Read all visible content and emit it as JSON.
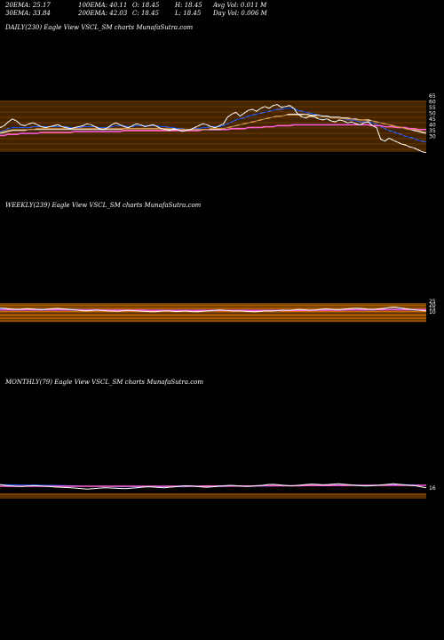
{
  "stats": {
    "ema20": "20EMA: 25.17",
    "ema100": "100EMA: 40.11",
    "open": "O: 18.45",
    "high": "H: 18.45",
    "avgvol": "Avg Vol: 0.011 M",
    "ema30": "30EMA: 33.84",
    "ema200": "200EMA: 42.03",
    "close": "C: 18.45",
    "low": "L: 18.45",
    "dayvol": "Day Vol: 0.006 M"
  },
  "chart_data": [
    {
      "type": "line",
      "title": "DAILY(230) Eagle View VSCL_SM charts MunafaSutra.com",
      "right_axis_labels": [
        "65",
        "60",
        "55",
        "50",
        "45",
        "40",
        "35",
        "30"
      ],
      "ylim": [
        15,
        75
      ],
      "price": [
        44,
        46,
        50,
        53,
        51,
        47,
        46,
        48,
        49,
        47,
        45,
        44,
        45,
        46,
        47,
        45,
        44,
        43,
        44,
        45,
        46,
        48,
        47,
        45,
        43,
        42,
        44,
        47,
        49,
        47,
        45,
        44,
        46,
        48,
        47,
        45,
        46,
        47,
        45,
        43,
        42,
        41,
        43,
        42,
        40,
        41,
        42,
        44,
        46,
        48,
        47,
        45,
        44,
        46,
        48,
        55,
        58,
        60,
        56,
        59,
        62,
        63,
        61,
        64,
        66,
        64,
        67,
        68,
        65,
        66,
        67,
        64,
        58,
        55,
        54,
        56,
        55,
        53,
        52,
        53,
        51,
        50,
        52,
        51,
        49,
        50,
        48,
        47,
        49,
        50,
        46,
        44,
        32,
        30,
        33,
        31,
        29,
        27,
        26,
        24,
        23,
        21,
        19,
        18
      ],
      "series": [
        {
          "name": "",
          "color": "#1f5cff",
          "values": [
            40,
            41,
            43,
            44,
            44,
            44,
            44,
            44,
            45,
            45,
            45,
            45,
            45,
            45,
            45,
            45,
            45,
            44,
            44,
            44,
            45,
            45,
            45,
            45,
            44,
            44,
            44,
            45,
            46,
            46,
            46,
            45,
            45,
            46,
            46,
            46,
            46,
            46,
            46,
            45,
            45,
            44,
            44,
            43,
            43,
            42,
            42,
            43,
            43,
            44,
            44,
            45,
            45,
            45,
            46,
            48,
            50,
            52,
            53,
            54,
            56,
            57,
            58,
            59,
            60,
            61,
            62,
            63,
            63,
            64,
            64,
            64,
            62,
            61,
            60,
            59,
            58,
            57,
            56,
            56,
            55,
            54,
            54,
            53,
            52,
            52,
            51,
            50,
            50,
            50,
            49,
            48,
            45,
            43,
            41,
            40,
            38,
            37,
            35,
            34,
            33,
            31,
            30,
            29
          ]
        },
        {
          "name": "",
          "color": "#ff5fd0",
          "values": [
            36,
            36,
            37,
            37,
            37,
            38,
            38,
            38,
            38,
            38,
            39,
            39,
            39,
            39,
            39,
            39,
            39,
            39,
            40,
            40,
            40,
            40,
            40,
            40,
            40,
            40,
            40,
            40,
            40,
            40,
            41,
            41,
            41,
            41,
            41,
            41,
            41,
            41,
            41,
            41,
            41,
            41,
            41,
            41,
            41,
            41,
            41,
            41,
            41,
            42,
            42,
            42,
            42,
            42,
            42,
            42,
            43,
            43,
            43,
            43,
            44,
            44,
            44,
            44,
            45,
            45,
            45,
            46,
            46,
            46,
            46,
            47,
            47,
            47,
            47,
            47,
            47,
            47,
            47,
            47,
            47,
            47,
            47,
            47,
            47,
            47,
            47,
            47,
            47,
            47,
            46,
            46,
            46,
            45,
            45,
            45,
            44,
            44,
            44,
            43,
            43,
            42,
            42,
            42
          ]
        },
        {
          "name": "",
          "color": "#ffffff",
          "values": [
            38,
            39,
            40,
            41,
            41,
            41,
            41,
            42,
            42,
            42,
            42,
            42,
            42,
            42,
            42,
            42,
            42,
            42,
            42,
            42,
            42,
            42,
            42,
            42,
            42,
            42,
            42,
            42,
            42,
            42,
            43,
            43,
            43,
            43,
            43,
            43,
            43,
            43,
            43,
            43,
            43,
            42,
            42,
            42,
            42,
            42,
            42,
            42,
            42,
            42,
            42,
            42,
            42,
            42,
            43,
            44,
            45,
            46,
            47,
            48,
            49,
            50,
            51,
            52,
            53,
            54,
            55,
            56,
            56,
            57,
            58,
            58,
            58,
            58,
            58,
            57,
            57,
            57,
            56,
            56,
            55,
            55,
            55,
            54,
            54,
            53,
            53,
            52,
            52,
            52,
            51,
            50,
            49,
            48,
            47,
            46,
            45,
            44,
            43,
            42,
            41,
            40,
            39,
            38
          ]
        },
        {
          "name": "",
          "color": "#c98a3a",
          "values": [
            39,
            40,
            41,
            42,
            42,
            42,
            42,
            42,
            42,
            43,
            43,
            43,
            43,
            43,
            43,
            43,
            43,
            43,
            43,
            43,
            43,
            43,
            43,
            43,
            43,
            43,
            43,
            43,
            43,
            43,
            43,
            43,
            43,
            43,
            43,
            43,
            43,
            43,
            43,
            43,
            43,
            43,
            43,
            42,
            42,
            42,
            42,
            42,
            42,
            42,
            42,
            43,
            43,
            43,
            43,
            44,
            45,
            46,
            47,
            48,
            49,
            50,
            51,
            52,
            53,
            54,
            55,
            56,
            56,
            57,
            57,
            57,
            57,
            57,
            56,
            56,
            56,
            55,
            55,
            55,
            54,
            54,
            54,
            53,
            53,
            53,
            52,
            52,
            52,
            51,
            51,
            50,
            49,
            48,
            47,
            46,
            45,
            44,
            43,
            42,
            42,
            41,
            40,
            39
          ]
        }
      ]
    },
    {
      "type": "line",
      "title": "WEEKLY(239) Eagle View VSCL_SM charts MunafaSutra.com",
      "right_axis_labels": [
        "25",
        "20",
        "15",
        "10"
      ],
      "ylim": [
        0,
        100
      ],
      "price": [
        50,
        48,
        46,
        44,
        45,
        47,
        46,
        44,
        43,
        45,
        47,
        48,
        46,
        44,
        42,
        40,
        38,
        39,
        41,
        40,
        38,
        37,
        36,
        38,
        40,
        39,
        37,
        36,
        35,
        34,
        36,
        38,
        37,
        35,
        36,
        37,
        35,
        34,
        36,
        38,
        40,
        42,
        41,
        39,
        37,
        38,
        36,
        35,
        34,
        36,
        38,
        37,
        39,
        41,
        40,
        42,
        44,
        43,
        41,
        42,
        44,
        46,
        45,
        43,
        44,
        46,
        48,
        49,
        47,
        45,
        44,
        46,
        48,
        52,
        54,
        51,
        47,
        44,
        42,
        40,
        38
      ],
      "series": [
        {
          "name": "",
          "color": "#1f5cff",
          "values": [
            46,
            46,
            45,
            45,
            45,
            45,
            45,
            45,
            45,
            45,
            45,
            45,
            45,
            45,
            44,
            44,
            43,
            43,
            43,
            42,
            42,
            41,
            41,
            41,
            41,
            40,
            40,
            40,
            39,
            39,
            39,
            39,
            39,
            38,
            38,
            38,
            38,
            38,
            38,
            38,
            38,
            39,
            39,
            39,
            39,
            39,
            39,
            39,
            38,
            38,
            38,
            38,
            38,
            39,
            39,
            39,
            40,
            40,
            40,
            40,
            41,
            41,
            42,
            42,
            42,
            43,
            43,
            44,
            44,
            44,
            44,
            44,
            45,
            45,
            46,
            46,
            46,
            45,
            45,
            44,
            44
          ]
        },
        {
          "name": "",
          "color": "#ff5fd0",
          "values": [
            42,
            42,
            42,
            42,
            42,
            42,
            42,
            42,
            42,
            42,
            42,
            42,
            42,
            42,
            42,
            42,
            41,
            41,
            41,
            41,
            41,
            41,
            41,
            41,
            41,
            41,
            41,
            41,
            40,
            40,
            40,
            40,
            40,
            40,
            40,
            40,
            40,
            40,
            40,
            40,
            40,
            40,
            40,
            40,
            40,
            40,
            40,
            40,
            40,
            40,
            40,
            40,
            40,
            40,
            40,
            40,
            40,
            40,
            40,
            41,
            41,
            41,
            41,
            41,
            41,
            42,
            42,
            42,
            42,
            42,
            42,
            43,
            43,
            43,
            43,
            43,
            43,
            43,
            43,
            43,
            43
          ]
        }
      ]
    },
    {
      "type": "line",
      "title": "MONTHLY(79) Eagle View VSCL_SM charts MunafaSutra.com",
      "right_axis_labels": [
        "16"
      ],
      "ylim": [
        0,
        100
      ],
      "price": [
        55,
        52,
        50,
        48,
        47,
        49,
        51,
        50,
        48,
        47,
        45,
        44,
        43,
        42,
        40,
        38,
        36,
        38,
        40,
        42,
        41,
        40,
        39,
        38,
        40,
        42,
        44,
        46,
        45,
        43,
        42,
        44,
        46,
        48,
        50,
        49,
        47,
        45,
        44,
        46,
        48,
        50,
        52,
        51,
        49,
        47,
        48,
        50,
        52,
        55,
        56,
        54,
        52,
        50,
        51,
        53,
        55,
        57,
        56,
        54,
        55,
        57,
        58,
        56,
        54,
        52,
        50,
        49,
        50,
        52,
        54,
        56,
        58,
        56,
        54,
        52,
        50,
        46,
        42
      ],
      "series": [
        {
          "name": "",
          "color": "#1f5cff",
          "values": [
            54,
            54,
            54,
            54,
            53,
            53,
            53,
            53,
            52,
            52,
            52,
            51,
            51,
            50,
            50,
            49,
            48,
            48,
            47,
            47,
            47,
            46,
            46,
            46,
            46,
            46,
            46,
            46,
            46,
            46,
            46,
            46,
            46,
            46,
            46,
            47,
            47,
            47,
            47,
            47,
            47,
            47,
            48,
            48,
            48,
            48,
            48,
            48,
            49,
            49,
            50,
            50,
            50,
            50,
            50,
            51,
            51,
            51,
            52,
            52,
            52,
            53,
            53,
            53,
            53,
            53,
            53,
            53,
            53,
            53,
            53,
            54,
            54,
            54,
            54,
            54,
            54,
            53,
            52
          ]
        },
        {
          "name": "",
          "color": "#ff5fd0",
          "values": [
            48,
            48,
            48,
            48,
            48,
            48,
            48,
            48,
            48,
            48,
            48,
            48,
            48,
            48,
            48,
            48,
            48,
            48,
            48,
            48,
            48,
            48,
            48,
            48,
            48,
            48,
            48,
            48,
            48,
            48,
            48,
            48,
            48,
            48,
            48,
            48,
            48,
            49,
            49,
            49,
            49,
            49,
            49,
            49,
            49,
            49,
            49,
            50,
            50,
            50,
            50,
            50,
            50,
            50,
            50,
            50,
            51,
            51,
            51,
            51,
            51,
            51,
            51,
            51,
            52,
            52,
            52,
            52,
            52,
            52,
            52,
            52,
            52,
            52,
            52,
            52,
            52,
            52,
            52
          ]
        }
      ]
    }
  ]
}
